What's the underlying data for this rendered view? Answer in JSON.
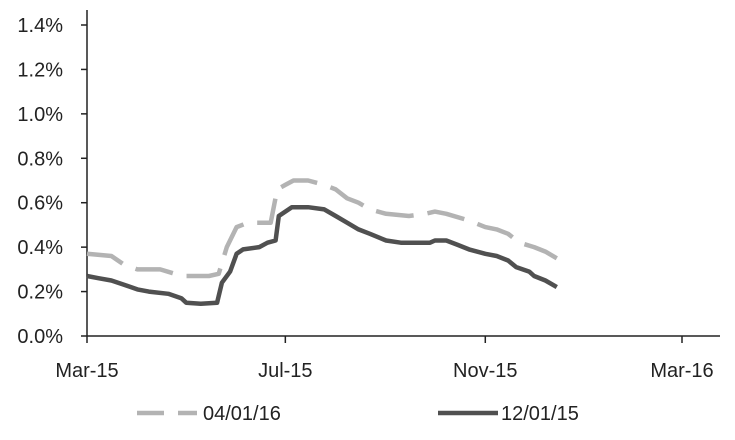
{
  "chart_data": {
    "type": "line",
    "title": "",
    "xlabel": "",
    "ylabel": "",
    "x_ticks": [
      "Mar-15",
      "Jul-15",
      "Nov-15",
      "Mar-16"
    ],
    "x_range": [
      "2015-03-01",
      "2016-03-01"
    ],
    "y_ticks": [
      "0.0%",
      "0.2%",
      "0.4%",
      "0.6%",
      "0.8%",
      "1.0%",
      "1.2%",
      "1.4%"
    ],
    "ylim": [
      0,
      1.4
    ],
    "grid": false,
    "legend_position": "bottom",
    "series": [
      {
        "name": "04/01/16",
        "color": "#b3b3b3",
        "style": "dashed",
        "points": [
          [
            "2015-03-01",
            0.37
          ],
          [
            "2015-03-16",
            0.36
          ],
          [
            "2015-03-24",
            0.32
          ],
          [
            "2015-04-01",
            0.3
          ],
          [
            "2015-04-15",
            0.3
          ],
          [
            "2015-04-24",
            0.28
          ],
          [
            "2015-05-01",
            0.27
          ],
          [
            "2015-05-15",
            0.27
          ],
          [
            "2015-05-21",
            0.28
          ],
          [
            "2015-05-26",
            0.4
          ],
          [
            "2015-06-01",
            0.49
          ],
          [
            "2015-06-08",
            0.51
          ],
          [
            "2015-06-22",
            0.51
          ],
          [
            "2015-06-26",
            0.66
          ],
          [
            "2015-07-01",
            0.68
          ],
          [
            "2015-07-06",
            0.7
          ],
          [
            "2015-07-15",
            0.7
          ],
          [
            "2015-07-25",
            0.68
          ],
          [
            "2015-08-01",
            0.66
          ],
          [
            "2015-08-08",
            0.62
          ],
          [
            "2015-08-15",
            0.6
          ],
          [
            "2015-08-22",
            0.57
          ],
          [
            "2015-09-01",
            0.55
          ],
          [
            "2015-09-15",
            0.54
          ],
          [
            "2015-09-25",
            0.55
          ],
          [
            "2015-10-01",
            0.56
          ],
          [
            "2015-10-08",
            0.55
          ],
          [
            "2015-10-22",
            0.52
          ],
          [
            "2015-11-01",
            0.49
          ],
          [
            "2015-11-08",
            0.48
          ],
          [
            "2015-11-15",
            0.46
          ],
          [
            "2015-11-22",
            0.42
          ],
          [
            "2015-12-01",
            0.4
          ],
          [
            "2015-12-08",
            0.38
          ],
          [
            "2015-12-15",
            0.35
          ]
        ]
      },
      {
        "name": "12/01/15",
        "color": "#505050",
        "style": "solid",
        "points": [
          [
            "2015-03-01",
            0.27
          ],
          [
            "2015-03-08",
            0.26
          ],
          [
            "2015-03-16",
            0.25
          ],
          [
            "2015-03-24",
            0.23
          ],
          [
            "2015-04-01",
            0.21
          ],
          [
            "2015-04-08",
            0.2
          ],
          [
            "2015-04-20",
            0.19
          ],
          [
            "2015-04-28",
            0.17
          ],
          [
            "2015-05-01",
            0.15
          ],
          [
            "2015-05-10",
            0.145
          ],
          [
            "2015-05-20",
            0.15
          ],
          [
            "2015-05-23",
            0.24
          ],
          [
            "2015-05-28",
            0.29
          ],
          [
            "2015-06-01",
            0.37
          ],
          [
            "2015-06-05",
            0.39
          ],
          [
            "2015-06-15",
            0.4
          ],
          [
            "2015-06-20",
            0.42
          ],
          [
            "2015-06-25",
            0.43
          ],
          [
            "2015-06-27",
            0.54
          ],
          [
            "2015-07-01",
            0.56
          ],
          [
            "2015-07-05",
            0.58
          ],
          [
            "2015-07-15",
            0.58
          ],
          [
            "2015-07-25",
            0.57
          ],
          [
            "2015-08-01",
            0.54
          ],
          [
            "2015-08-08",
            0.51
          ],
          [
            "2015-08-15",
            0.48
          ],
          [
            "2015-08-22",
            0.46
          ],
          [
            "2015-09-01",
            0.43
          ],
          [
            "2015-09-10",
            0.42
          ],
          [
            "2015-09-20",
            0.42
          ],
          [
            "2015-09-28",
            0.42
          ],
          [
            "2015-10-01",
            0.43
          ],
          [
            "2015-10-08",
            0.43
          ],
          [
            "2015-10-15",
            0.41
          ],
          [
            "2015-10-22",
            0.39
          ],
          [
            "2015-11-01",
            0.37
          ],
          [
            "2015-11-08",
            0.36
          ],
          [
            "2015-11-15",
            0.34
          ],
          [
            "2015-11-20",
            0.31
          ],
          [
            "2015-11-28",
            0.29
          ],
          [
            "2015-12-01",
            0.27
          ],
          [
            "2015-12-08",
            0.25
          ],
          [
            "2015-12-15",
            0.22
          ]
        ]
      }
    ]
  }
}
